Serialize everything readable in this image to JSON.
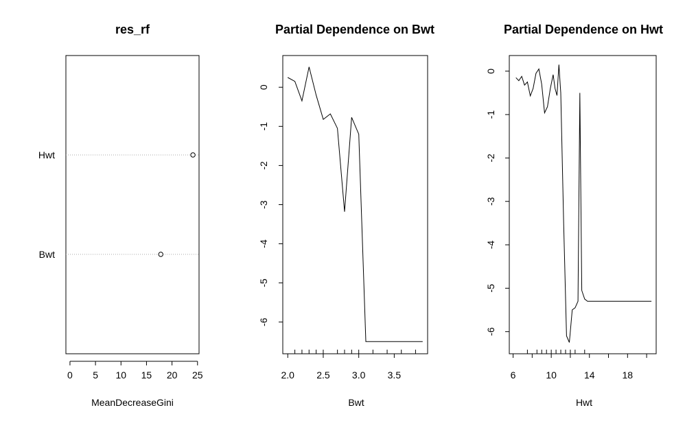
{
  "chart_data": [
    {
      "type": "scatter",
      "title": "res_rf",
      "xlabel": "MeanDecreaseGini",
      "ylabel": "",
      "xlim": [
        -0.8,
        25.3
      ],
      "xticks": [
        0,
        5,
        10,
        15,
        20,
        25
      ],
      "categories": [
        "Bwt",
        "Hwt"
      ],
      "values": [
        17.8,
        24.1
      ],
      "dotchart": true
    },
    {
      "type": "line",
      "title": "Partial Dependence on Bwt",
      "xlabel": "Bwt",
      "ylabel": "",
      "xlim": [
        1.93,
        3.97
      ],
      "ylim": [
        -6.81,
        0.81
      ],
      "xticks": [
        2.0,
        2.5,
        3.0,
        3.5
      ],
      "yticks": [
        0,
        -1,
        -2,
        -3,
        -4,
        -5,
        -6
      ],
      "x": [
        2.0,
        2.1,
        2.2,
        2.3,
        2.4,
        2.5,
        2.6,
        2.7,
        2.8,
        2.9,
        3.0,
        3.1,
        3.2,
        3.3,
        3.4,
        3.5,
        3.6,
        3.7,
        3.8,
        3.9
      ],
      "y": [
        0.25,
        0.15,
        -0.35,
        0.52,
        -0.2,
        -0.82,
        -0.68,
        -1.05,
        -3.18,
        -0.77,
        -1.2,
        -6.5,
        -6.5,
        -6.5,
        -6.5,
        -6.5,
        -6.5,
        -6.5,
        -6.5,
        -6.5
      ],
      "rug": [
        2.1,
        2.2,
        2.3,
        2.4,
        2.5,
        2.7,
        2.8,
        2.9,
        3.0,
        3.2,
        3.4,
        3.6,
        3.8
      ]
    },
    {
      "type": "line",
      "title": "Partial Dependence on Hwt",
      "xlabel": "Hwt",
      "ylabel": "",
      "xlim": [
        5.6,
        21.0
      ],
      "ylim": [
        -6.51,
        0.36
      ],
      "xticks": [
        6,
        10,
        14,
        18
      ],
      "xtick_marks": [
        6,
        8,
        10,
        12,
        14,
        16,
        18,
        20
      ],
      "yticks": [
        0,
        -1,
        -2,
        -3,
        -4,
        -5,
        -6
      ],
      "x": [
        6.3,
        6.6,
        6.9,
        7.2,
        7.5,
        7.8,
        8.1,
        8.4,
        8.7,
        9.0,
        9.3,
        9.6,
        9.9,
        10.2,
        10.4,
        10.6,
        10.8,
        11.0,
        11.3,
        11.6,
        11.9,
        12.2,
        12.5,
        12.8,
        13.0,
        13.2,
        13.5,
        13.8,
        15,
        17,
        19,
        20.5
      ],
      "y": [
        -0.15,
        -0.22,
        -0.12,
        -0.32,
        -0.25,
        -0.57,
        -0.4,
        -0.05,
        0.05,
        -0.3,
        -0.96,
        -0.82,
        -0.4,
        -0.08,
        -0.4,
        -0.56,
        0.15,
        -0.5,
        -3.5,
        -6.1,
        -6.25,
        -5.5,
        -5.45,
        -5.3,
        -0.5,
        -5.05,
        -5.25,
        -5.3,
        -5.3,
        -5.3,
        -5.3,
        -5.3
      ],
      "rug": [
        7.5,
        8.5,
        9.0,
        9.5,
        10.0,
        10.5,
        11.0,
        11.5,
        12.0,
        12.5,
        13.5
      ]
    }
  ]
}
